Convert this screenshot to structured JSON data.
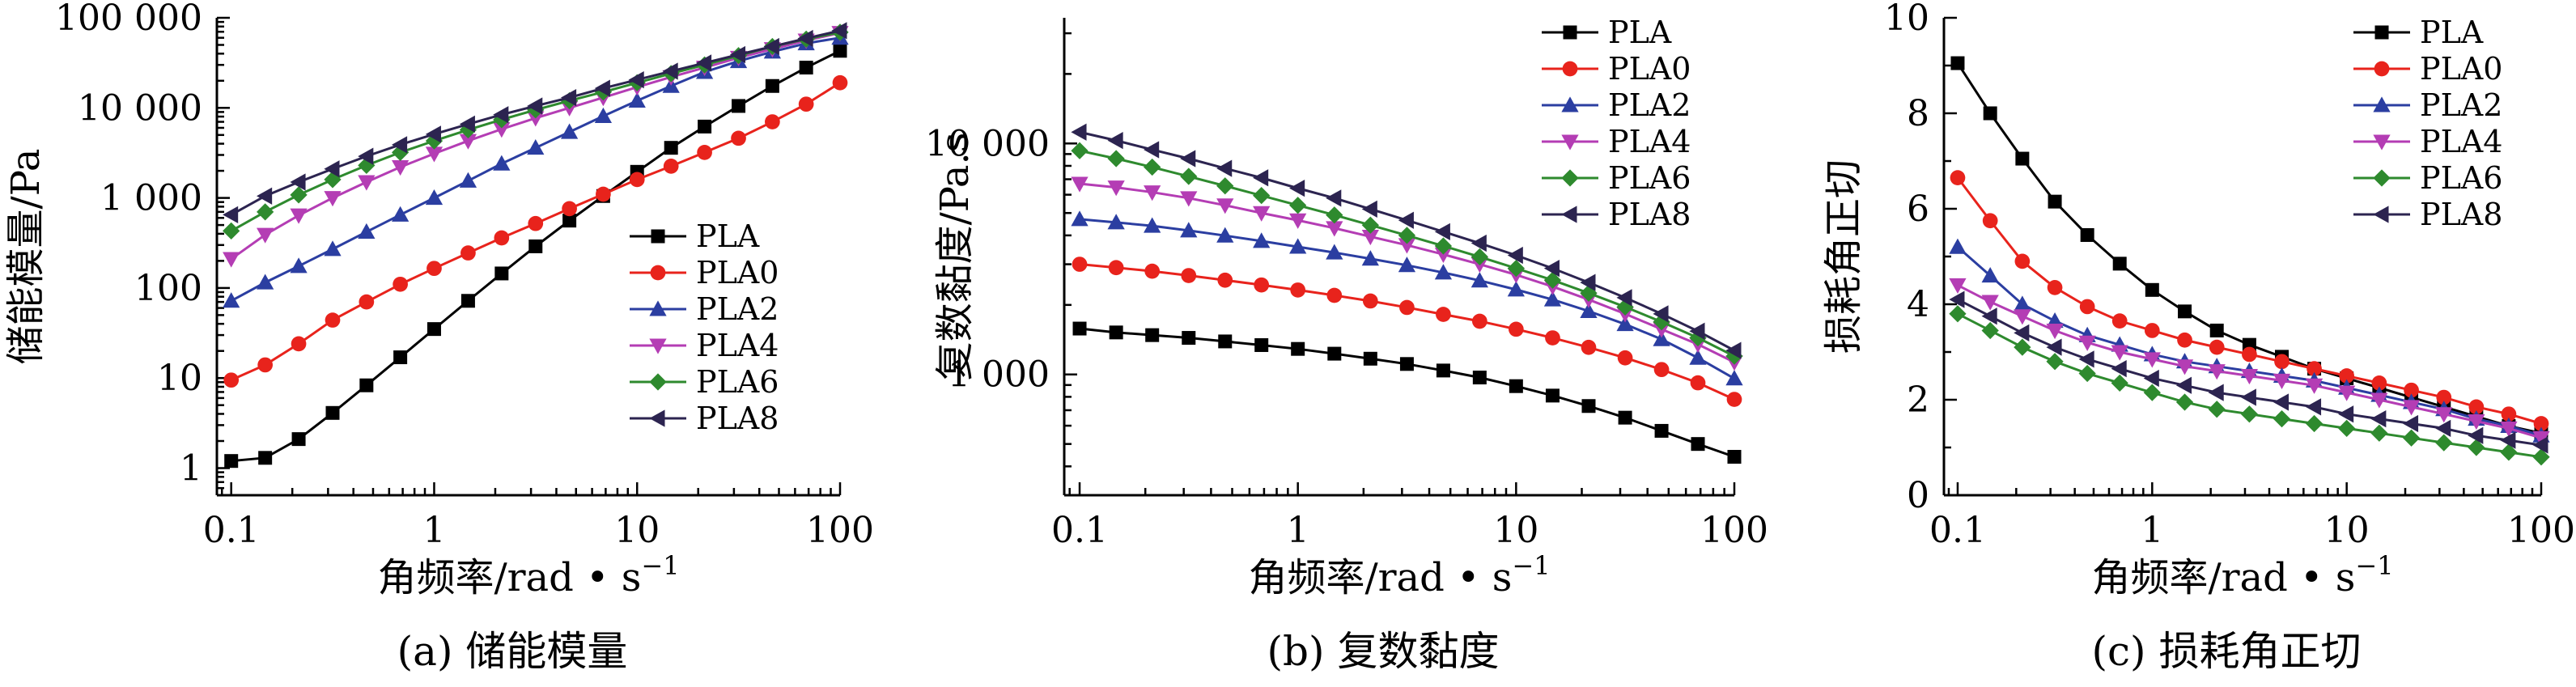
{
  "colors": {
    "PLA": "#000000",
    "PLA0": "#e8231c",
    "PLA2": "#2b3ea1",
    "PLA4": "#b43db4",
    "PLA6": "#2e8a2e",
    "PLA8": "#2c2450"
  },
  "markers": {
    "PLA": "square",
    "PLA0": "circle",
    "PLA2": "triangle-up",
    "PLA4": "triangle-down",
    "PLA6": "diamond",
    "PLA8": "triangle-left"
  },
  "chart_data": [
    {
      "type": "line",
      "caption": "(a) 储能模量",
      "xlabel": "角频率/rad • s",
      "xlabel_sup": "−1",
      "ylabel": "储能模量/Pa",
      "xscale": "log",
      "yscale": "log",
      "xlim": [
        0.085,
        100
      ],
      "ylim": [
        0.5,
        100000
      ],
      "xticks": [
        0.1,
        1,
        10,
        100
      ],
      "xtick_labels": [
        "0.1",
        "1",
        "10",
        "100"
      ],
      "yticks": [
        1,
        10,
        100,
        1000,
        10000,
        100000
      ],
      "ytick_labels": [
        "1",
        "10",
        "100",
        "1 000",
        "10 000",
        "100 000"
      ],
      "legend_position": "center-right",
      "x": [
        0.1,
        0.147,
        0.215,
        0.316,
        0.464,
        0.681,
        1,
        1.47,
        2.15,
        3.16,
        4.64,
        6.81,
        10,
        14.7,
        21.5,
        31.6,
        46.4,
        68.1,
        100
      ],
      "series": [
        {
          "name": "PLA",
          "values": [
            1.2,
            1.3,
            2.1,
            4.1,
            8.3,
            17,
            35,
            72,
            145,
            290,
            560,
            1050,
            1950,
            3600,
            6200,
            10500,
            17500,
            28000,
            43000
          ]
        },
        {
          "name": "PLA0",
          "values": [
            9.5,
            14,
            24,
            44,
            70,
            110,
            165,
            245,
            360,
            520,
            760,
            1100,
            1600,
            2250,
            3200,
            4600,
            7000,
            11000,
            19000
          ]
        },
        {
          "name": "PLA2",
          "values": [
            72,
            115,
            175,
            270,
            420,
            650,
            1000,
            1550,
            2400,
            3600,
            5400,
            8100,
            12000,
            17500,
            25000,
            33000,
            42000,
            52000,
            60000
          ]
        },
        {
          "name": "PLA4",
          "values": [
            210,
            390,
            640,
            1000,
            1500,
            2200,
            3100,
            4300,
            5800,
            7700,
            10000,
            13000,
            17000,
            22000,
            28000,
            36000,
            45000,
            56000,
            68000
          ]
        },
        {
          "name": "PLA6",
          "values": [
            430,
            700,
            1080,
            1600,
            2300,
            3200,
            4300,
            5700,
            7400,
            9500,
            12000,
            15000,
            19000,
            24000,
            30000,
            38000,
            48000,
            58000,
            69000
          ]
        },
        {
          "name": "PLA8",
          "values": [
            650,
            1050,
            1500,
            2100,
            2900,
            3900,
            5100,
            6600,
            8400,
            10500,
            13000,
            16500,
            20500,
            25500,
            31500,
            39000,
            48000,
            59000,
            72000
          ]
        }
      ]
    },
    {
      "type": "line",
      "caption": "(b) 复数黏度",
      "xlabel": "角频率/rad • s",
      "xlabel_sup": "−1",
      "ylabel": "复数黏度/Pa.s",
      "xscale": "log",
      "yscale": "log",
      "xlim": [
        0.085,
        100
      ],
      "ylim": [
        300,
        35000
      ],
      "xticks": [
        0.1,
        1,
        10,
        100
      ],
      "xtick_labels": [
        "0.1",
        "1",
        "10",
        "100"
      ],
      "yticks": [
        1000,
        10000
      ],
      "ytick_labels": [
        "1 000",
        "10 000"
      ],
      "legend_position": "top-right",
      "x": [
        0.1,
        0.147,
        0.215,
        0.316,
        0.464,
        0.681,
        1,
        1.47,
        2.15,
        3.16,
        4.64,
        6.81,
        10,
        14.7,
        21.5,
        31.6,
        46.4,
        68.1,
        100
      ],
      "series": [
        {
          "name": "PLA",
          "values": [
            1580,
            1520,
            1480,
            1440,
            1390,
            1340,
            1290,
            1230,
            1170,
            1110,
            1040,
            970,
            890,
            810,
            730,
            650,
            570,
            500,
            440
          ]
        },
        {
          "name": "PLA0",
          "values": [
            3000,
            2900,
            2800,
            2680,
            2560,
            2440,
            2320,
            2200,
            2080,
            1950,
            1820,
            1700,
            1570,
            1440,
            1310,
            1180,
            1050,
            920,
            780
          ]
        },
        {
          "name": "PLA2",
          "values": [
            4700,
            4550,
            4400,
            4200,
            3990,
            3780,
            3570,
            3370,
            3170,
            2970,
            2760,
            2550,
            2330,
            2110,
            1880,
            1650,
            1420,
            1180,
            960
          ]
        },
        {
          "name": "PLA4",
          "values": [
            6700,
            6450,
            6150,
            5800,
            5400,
            5000,
            4650,
            4300,
            3950,
            3630,
            3310,
            3000,
            2700,
            2400,
            2110,
            1830,
            1570,
            1350,
            1130
          ]
        },
        {
          "name": "PLA6",
          "values": [
            9300,
            8600,
            7900,
            7200,
            6550,
            5950,
            5400,
            4900,
            4430,
            4000,
            3600,
            3230,
            2880,
            2560,
            2250,
            1960,
            1690,
            1440,
            1200
          ]
        },
        {
          "name": "PLA8",
          "values": [
            11200,
            10300,
            9400,
            8600,
            7800,
            7100,
            6400,
            5800,
            5200,
            4650,
            4150,
            3700,
            3280,
            2880,
            2500,
            2150,
            1830,
            1540,
            1270
          ]
        }
      ]
    },
    {
      "type": "line",
      "caption": "(c) 损耗角正切",
      "xlabel": "角频率/rad • s",
      "xlabel_sup": "−1",
      "ylabel": "损耗角正切",
      "xscale": "log",
      "yscale": "linear",
      "xlim": [
        0.085,
        100
      ],
      "ylim": [
        0,
        10
      ],
      "xticks": [
        0.1,
        1,
        10,
        100
      ],
      "xtick_labels": [
        "0.1",
        "1",
        "10",
        "100"
      ],
      "yticks": [
        0,
        2,
        4,
        6,
        8,
        10
      ],
      "ytick_labels": [
        "0",
        "2",
        "4",
        "6",
        "8",
        "10"
      ],
      "legend_position": "top-right",
      "x": [
        0.1,
        0.147,
        0.215,
        0.316,
        0.464,
        0.681,
        1,
        1.47,
        2.15,
        3.16,
        4.64,
        6.81,
        10,
        14.7,
        21.5,
        31.6,
        46.4,
        68.1,
        100
      ],
      "series": [
        {
          "name": "PLA",
          "values": [
            9.05,
            8.0,
            7.05,
            6.15,
            5.45,
            4.85,
            4.3,
            3.85,
            3.45,
            3.15,
            2.9,
            2.65,
            2.45,
            2.25,
            2.05,
            1.85,
            1.65,
            1.45,
            1.3
          ]
        },
        {
          "name": "PLA0",
          "values": [
            6.65,
            5.75,
            4.9,
            4.35,
            3.95,
            3.65,
            3.45,
            3.25,
            3.1,
            2.95,
            2.8,
            2.65,
            2.5,
            2.35,
            2.2,
            2.05,
            1.85,
            1.7,
            1.5
          ]
        },
        {
          "name": "PLA2",
          "values": [
            5.2,
            4.6,
            4.0,
            3.65,
            3.35,
            3.15,
            2.95,
            2.8,
            2.7,
            2.6,
            2.5,
            2.4,
            2.25,
            2.1,
            1.95,
            1.8,
            1.6,
            1.45,
            1.25
          ]
        },
        {
          "name": "PLA4",
          "values": [
            4.4,
            4.05,
            3.75,
            3.45,
            3.2,
            3.0,
            2.85,
            2.7,
            2.6,
            2.5,
            2.4,
            2.3,
            2.15,
            2.0,
            1.85,
            1.7,
            1.55,
            1.4,
            1.2
          ]
        },
        {
          "name": "PLA6",
          "values": [
            3.8,
            3.45,
            3.1,
            2.8,
            2.55,
            2.35,
            2.15,
            1.95,
            1.8,
            1.7,
            1.6,
            1.5,
            1.4,
            1.3,
            1.2,
            1.1,
            1.0,
            0.9,
            0.8
          ]
        },
        {
          "name": "PLA8",
          "values": [
            4.1,
            3.75,
            3.4,
            3.1,
            2.85,
            2.65,
            2.45,
            2.3,
            2.15,
            2.05,
            1.95,
            1.85,
            1.7,
            1.6,
            1.5,
            1.4,
            1.25,
            1.15,
            1.05
          ]
        }
      ]
    }
  ]
}
